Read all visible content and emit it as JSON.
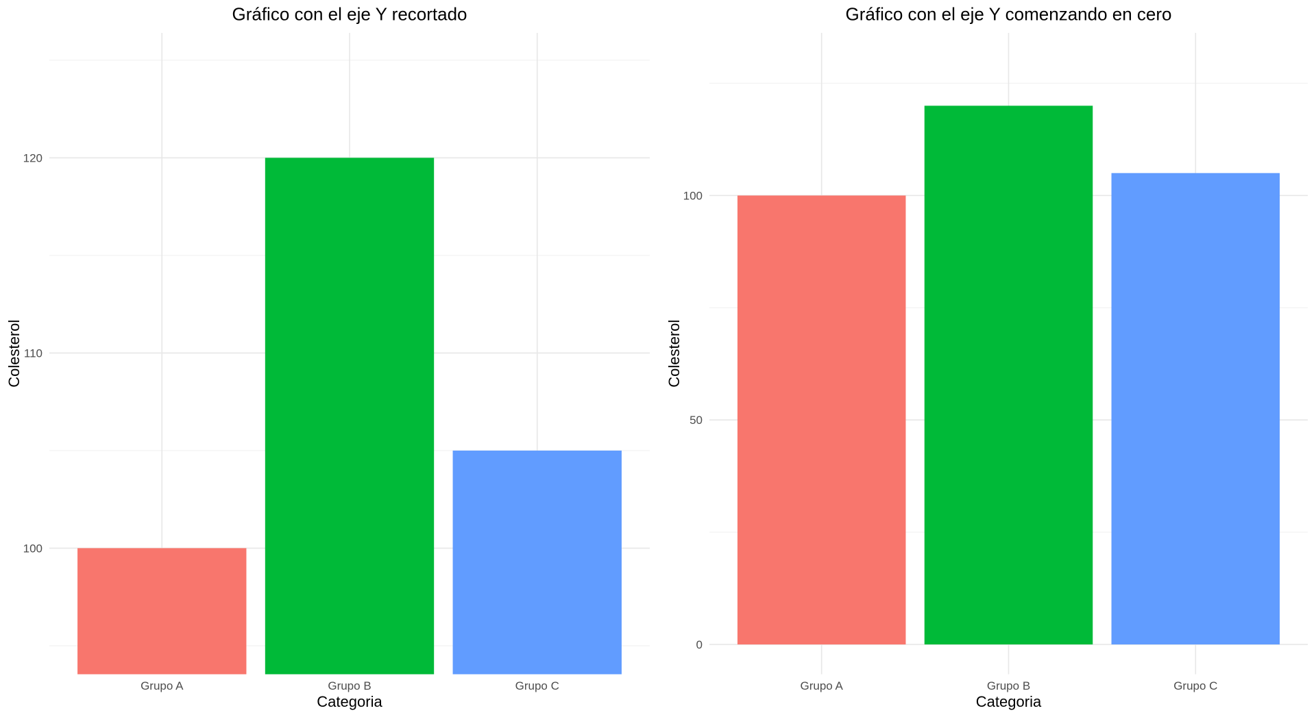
{
  "page": {
    "background": "#FFFFFF"
  },
  "style": {
    "title_color": "#000000",
    "axis_title_color": "#000000",
    "tick_label_color": "#4D4D4D",
    "grid_major_color": "#E7E7E7",
    "grid_minor_color": "#F1F1F1",
    "panel_background": "#FFFFFF"
  },
  "chart_data": [
    {
      "type": "bar",
      "title": "Gráfico con el eje Y recortado",
      "xlabel": "Categoria",
      "ylabel": "Colesterol",
      "categories": [
        "Grupo A",
        "Grupo B",
        "Grupo C"
      ],
      "values": [
        100,
        120,
        105
      ],
      "bar_colors": [
        "#F8766D",
        "#00BA38",
        "#619CFF"
      ],
      "ylim": [
        93.54,
        126.4
      ],
      "y_ticks": [
        100,
        110,
        120
      ],
      "y_minor_ticks": [
        95,
        105,
        115,
        125
      ],
      "bar_baseline": 0,
      "grid": true,
      "legend": false
    },
    {
      "type": "bar",
      "title": "Gráfico con el eje Y comenzando en cero",
      "xlabel": "Categoria",
      "ylabel": "Colesterol",
      "categories": [
        "Grupo A",
        "Grupo B",
        "Grupo C"
      ],
      "values": [
        100,
        120,
        105
      ],
      "bar_colors": [
        "#F8766D",
        "#00BA38",
        "#619CFF"
      ],
      "ylim": [
        -6.64,
        136.23
      ],
      "y_ticks": [
        0,
        50,
        100
      ],
      "y_minor_ticks": [
        25,
        75,
        125
      ],
      "bar_baseline": 0,
      "grid": true,
      "legend": false
    }
  ]
}
